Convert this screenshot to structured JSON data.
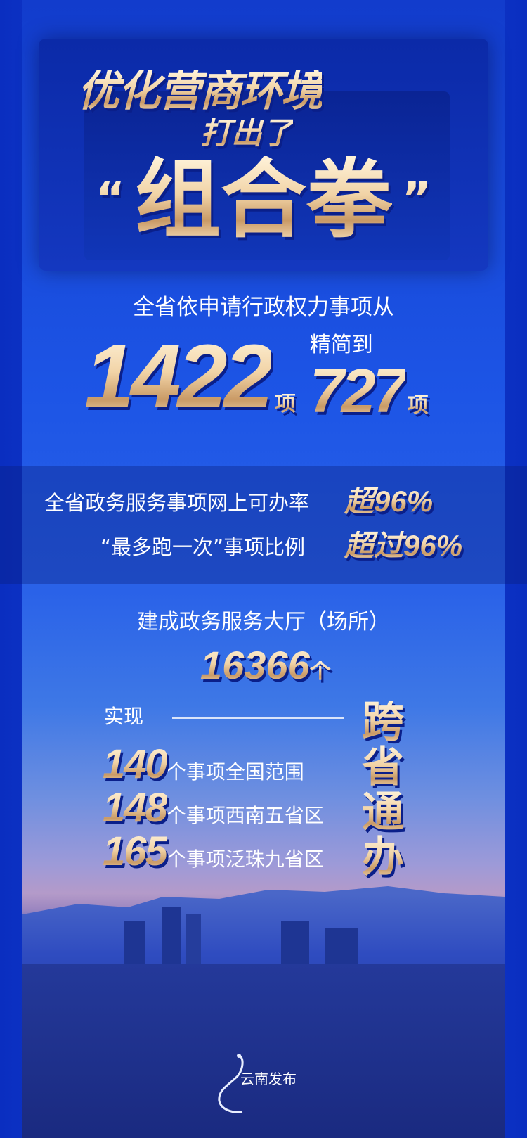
{
  "title": {
    "line1": "优化营商环境",
    "line2": "打出了",
    "quote_open": "“",
    "main": "组合拳",
    "quote_close": "”"
  },
  "stat1": {
    "intro": "全省依申请行政权力事项从",
    "from": "1422",
    "unit1": "项",
    "reduce": "精简到",
    "to": "727",
    "unit2": "项"
  },
  "stat2": {
    "line1_text": "全省政务服务事项网上可办率",
    "line1_value": "超96%",
    "line2_text": "“最多跑一次”事项比例",
    "line2_value": "超过96%"
  },
  "stat3": {
    "intro": "建成政务服务大厅（场所）",
    "value": "16366",
    "unit": "个"
  },
  "stat4": {
    "intro": "实现",
    "items": [
      {
        "value": "140",
        "text": "个事项全国范围"
      },
      {
        "value": "148",
        "text": "个事项西南五省区"
      },
      {
        "value": "165",
        "text": "个事项泛珠九省区"
      }
    ],
    "vertical": [
      "跨",
      "省",
      "通",
      "办"
    ]
  },
  "footer": {
    "logo_text": "云南发布"
  },
  "colors": {
    "background": "#0a2ec0",
    "gold": "#f1d3a6",
    "shadow": "#0a1f8a"
  }
}
